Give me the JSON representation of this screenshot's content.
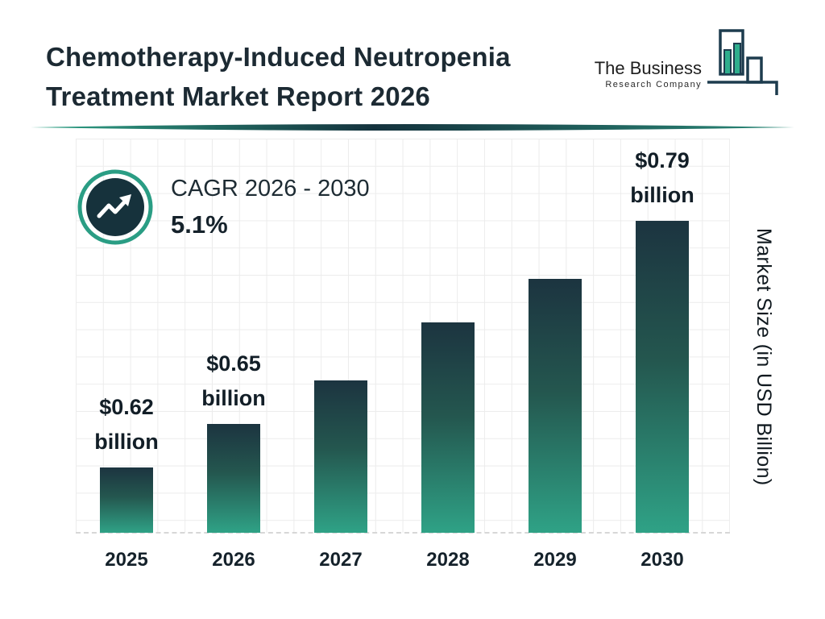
{
  "header": {
    "title_line1": "Chemotherapy-Induced Neutropenia",
    "title_line2": "Treatment Market Report 2026"
  },
  "logo": {
    "name": "The Business",
    "subtitle": "Research Company"
  },
  "cagr": {
    "label": "CAGR 2026 - 2030",
    "value": "5.1%"
  },
  "chart_data": {
    "type": "bar",
    "title": "Chemotherapy-Induced Neutropenia Treatment Market Report 2026",
    "categories": [
      "2025",
      "2026",
      "2027",
      "2028",
      "2029",
      "2030"
    ],
    "values": [
      0.62,
      0.65,
      0.68,
      0.72,
      0.75,
      0.79
    ],
    "unit": "USD Billion",
    "value_labels": [
      [
        "$0.62",
        "billion"
      ],
      [
        "$0.65",
        "billion"
      ],
      null,
      null,
      null,
      [
        "$0.79",
        "billion"
      ]
    ],
    "xlabel": "",
    "ylabel": "Market Size (in USD Billion)",
    "ylim": [
      0.575,
      0.8
    ],
    "grid": true,
    "legend": false,
    "cagr_percent": 5.1,
    "cagr_period": "2026 - 2030"
  },
  "colors": {
    "bar_gradient_top": "#1c3440",
    "bar_gradient_bottom": "#2fa286",
    "accent_teal": "#2a9d84",
    "dark_navy": "#16323c",
    "title_text": "#1c2a33",
    "grid_line": "#ececec"
  }
}
